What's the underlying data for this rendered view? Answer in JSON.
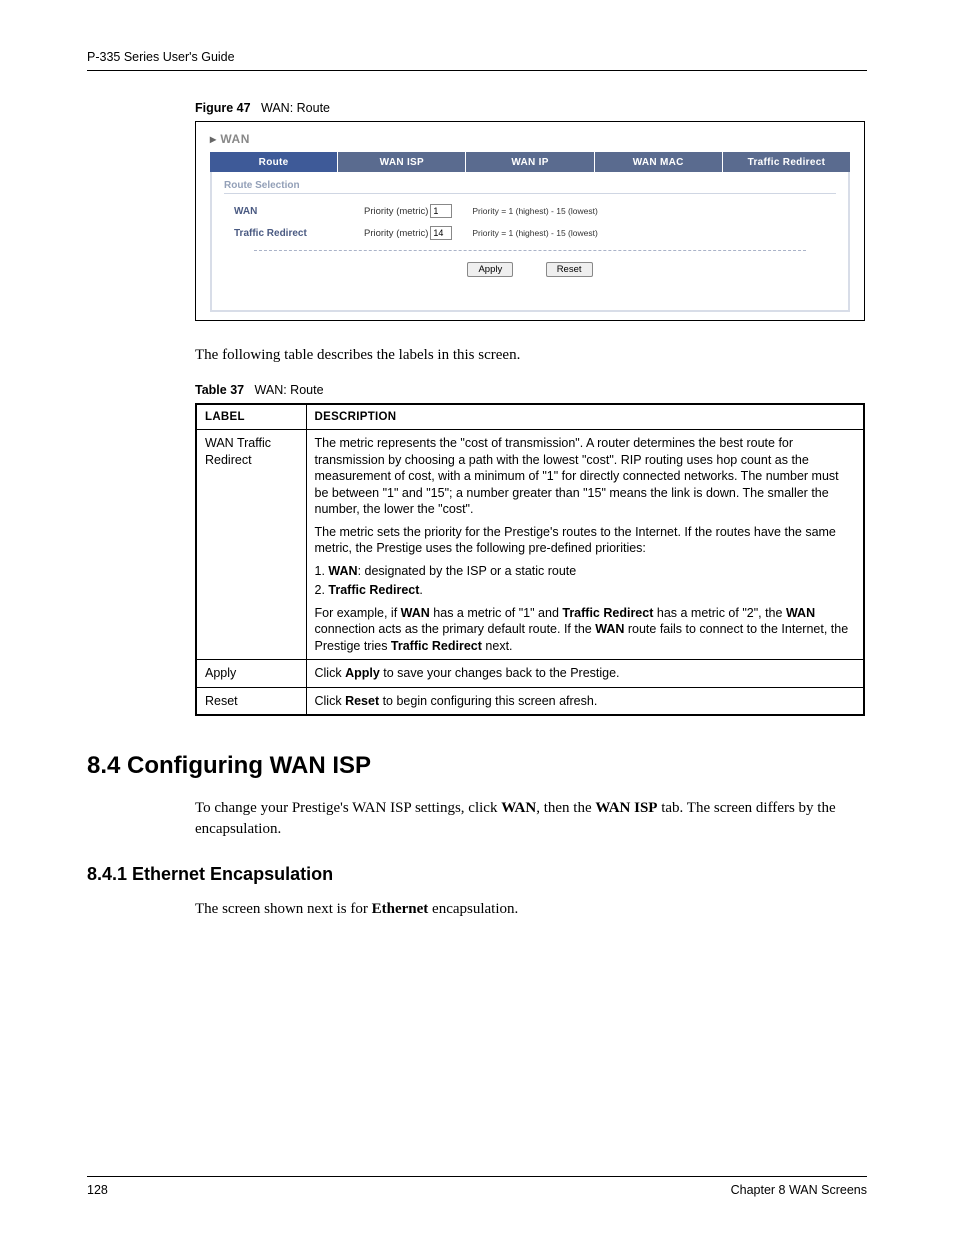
{
  "header": {
    "guide_title": "P-335 Series User's Guide"
  },
  "figure": {
    "label": "Figure 47",
    "title": "WAN: Route"
  },
  "screenshot": {
    "panel_title": "WAN",
    "tabs": {
      "route": "Route",
      "wan_isp": "WAN ISP",
      "wan_ip": "WAN IP",
      "wan_mac": "WAN MAC",
      "traffic_redirect": "Traffic Redirect"
    },
    "section_title": "Route Selection",
    "rows": {
      "wan": {
        "label": "WAN",
        "field_label": "Priority (metric)",
        "value": "1",
        "hint": "Priority = 1 (highest) - 15 (lowest)"
      },
      "traffic_redirect": {
        "label": "Traffic Redirect",
        "field_label": "Priority (metric)",
        "value": "14",
        "hint": "Priority = 1 (highest) - 15 (lowest)"
      }
    },
    "buttons": {
      "apply": "Apply",
      "reset": "Reset"
    }
  },
  "intro_text": "The following table describes the labels in this screen.",
  "table": {
    "label": "Table 37",
    "title": "WAN: Route",
    "headers": {
      "label": "LABEL",
      "description": "DESCRIPTION"
    },
    "rows": {
      "r1": {
        "label": "WAN Traffic Redirect",
        "p1": "The metric represents the \"cost of transmission\". A router determines the best route for transmission by choosing a path with the lowest \"cost\". RIP routing uses hop count as the measurement of cost, with a minimum of \"1\" for directly connected networks. The number must be between \"1\" and \"15\"; a number greater than \"15\" means the link is down. The smaller the number, the lower the \"cost\".",
        "p2": "The metric sets the priority for the Prestige's routes to the Internet. If the routes have the same metric, the Prestige uses the following pre-defined priorities:",
        "li1_pre": "1.   ",
        "li1_b": "WAN",
        "li1_post": ": designated by the ISP or a static route",
        "li2_pre": "2.   ",
        "li2_b": "Traffic Redirect",
        "li2_post": ".",
        "p3_a": "For example, if ",
        "p3_b1": "WAN",
        "p3_b": " has a metric of \"1\" and ",
        "p3_b2": "Traffic Redirect",
        "p3_c": " has a metric of \"2\", the ",
        "p3_b3": "WAN",
        "p3_d": " connection acts as the primary default route. If the ",
        "p3_b4": "WAN",
        "p3_e": " route fails to connect to the Internet, the Prestige tries ",
        "p3_b5": "Traffic Redirect",
        "p3_f": " next."
      },
      "r2": {
        "label": "Apply",
        "d_a": "Click ",
        "d_b": "Apply",
        "d_c": " to save your changes back to the Prestige."
      },
      "r3": {
        "label": "Reset",
        "d_a": "Click ",
        "d_b": "Reset",
        "d_c": " to begin configuring this screen afresh."
      }
    }
  },
  "section84": {
    "heading": "8.4  Configuring WAN ISP",
    "p_a": "To change your Prestige's WAN ISP settings, click ",
    "p_b1": "WAN",
    "p_b": ", then the ",
    "p_b2": "WAN ISP",
    "p_c": " tab. The screen differs by the encapsulation."
  },
  "section841": {
    "heading": "8.4.1  Ethernet Encapsulation",
    "p_a": "The screen shown next is for ",
    "p_b": "Ethernet",
    "p_c": " encapsulation."
  },
  "footer": {
    "page": "128",
    "chapter": "Chapter 8 WAN Screens"
  }
}
